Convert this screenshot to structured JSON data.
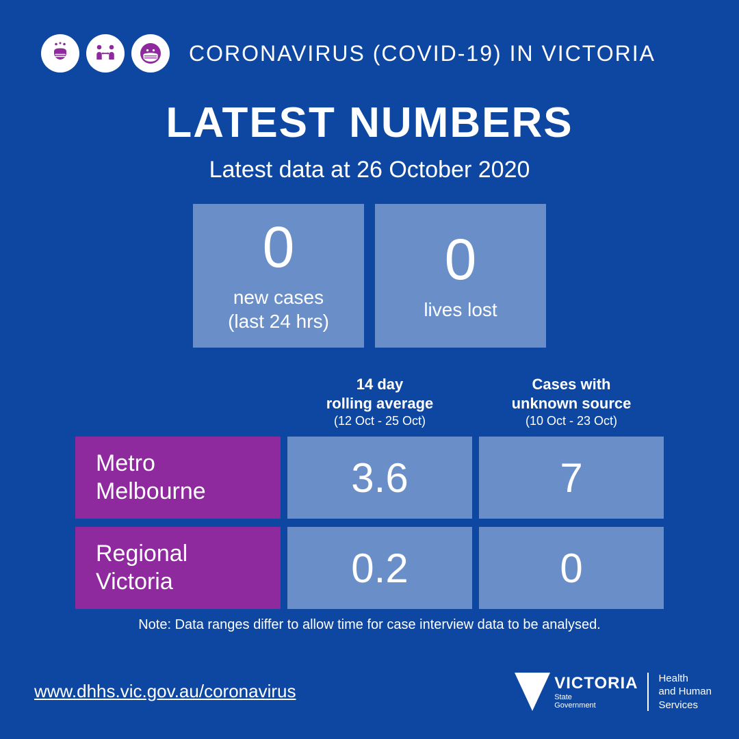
{
  "colors": {
    "background": "#0e47a1",
    "card_bg": "#6a8fc8",
    "row_label_bg": "#8e2a9d",
    "icon_fg": "#8e2a9d",
    "text": "#ffffff"
  },
  "header": {
    "title": "CORONAVIRUS (COVID-19) IN VICTORIA",
    "icons": [
      "handwash-icon",
      "distance-icon",
      "mask-icon"
    ]
  },
  "main_title": "LATEST NUMBERS",
  "subtitle": "Latest data at 26 October 2020",
  "stats": [
    {
      "value": "0",
      "label": "new cases\n(last 24 hrs)"
    },
    {
      "value": "0",
      "label": "lives lost"
    }
  ],
  "table": {
    "columns": [
      {
        "title": "14 day\nrolling average",
        "sub": "(12 Oct -  25 Oct)"
      },
      {
        "title": "Cases with\nunknown source",
        "sub": "(10 Oct -  23 Oct)"
      }
    ],
    "rows": [
      {
        "label": "Metro\nMelbourne",
        "values": [
          "3.6",
          "7"
        ]
      },
      {
        "label": "Regional\nVictoria",
        "values": [
          "0.2",
          "0"
        ]
      }
    ],
    "note": "Note: Data ranges differ to allow time for case interview data to be analysed."
  },
  "footer": {
    "url": "www.dhhs.vic.gov.au/coronavirus",
    "logo_main": "VICTORIA",
    "logo_sub": "State\nGovernment",
    "department": "Health\nand Human\nServices"
  }
}
